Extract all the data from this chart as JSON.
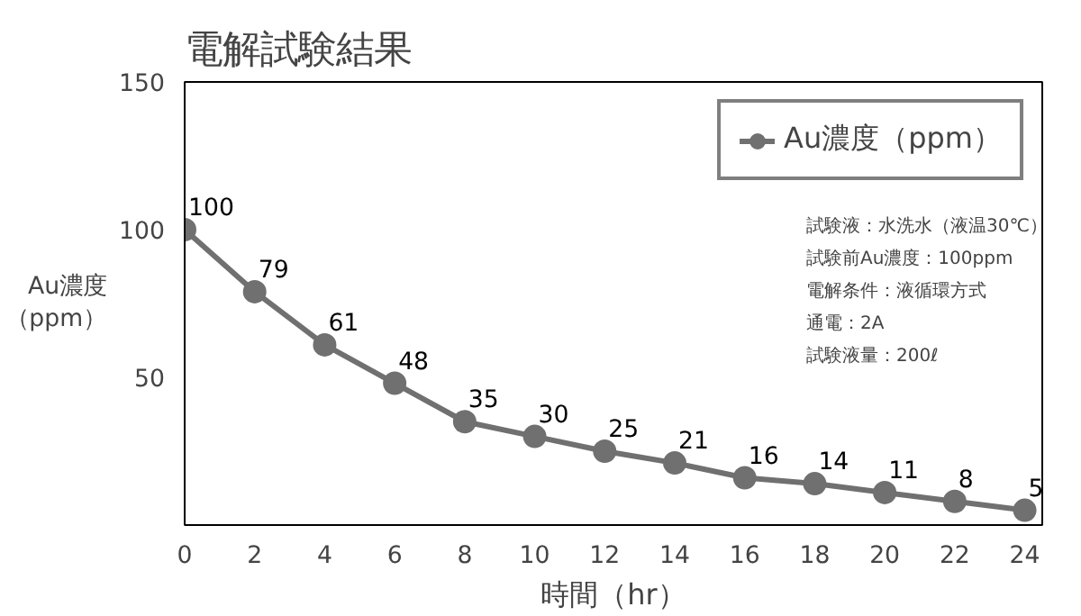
{
  "chart_data": {
    "type": "line",
    "title": "電解試験結果",
    "xlabel": "時間（hr）",
    "ylabel": "Au濃度（ppm）",
    "x": [
      0,
      2,
      4,
      6,
      8,
      10,
      12,
      14,
      16,
      18,
      20,
      22,
      24
    ],
    "series": [
      {
        "name": "Au濃度（ppm）",
        "color": "#707070",
        "values": [
          100,
          79,
          61,
          48,
          35,
          30,
          25,
          21,
          16,
          14,
          11,
          8,
          5
        ]
      }
    ],
    "xlim": [
      0,
      24.5
    ],
    "ylim": [
      0,
      150
    ],
    "xticks": [
      0,
      2,
      4,
      6,
      8,
      10,
      12,
      14,
      16,
      18,
      20,
      22,
      24
    ],
    "yticks": [
      50,
      100,
      150
    ],
    "data_labels": true,
    "marker": "circle",
    "line_style": "solid",
    "legend": "top right",
    "grid": false,
    "annotations": [
      "試験液：水洗水（液温30℃）",
      "試験前Au濃度：100ppm",
      "電解条件：液循環方式",
      "通電：2A",
      "試験液量：200ℓ"
    ]
  }
}
